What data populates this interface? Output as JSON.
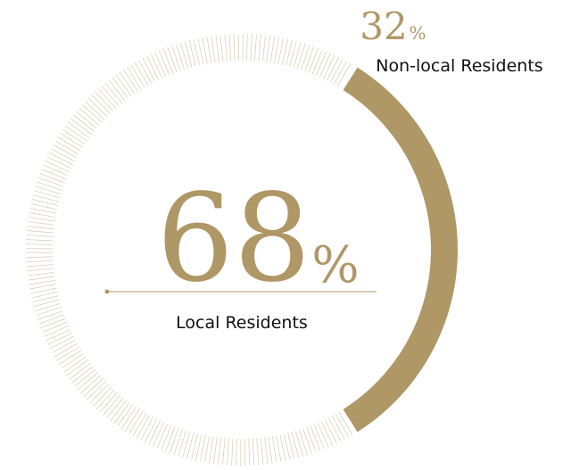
{
  "chart_data": {
    "type": "pie",
    "style": "donut",
    "series": [
      {
        "name": "Local Residents",
        "value": 68,
        "display": "68",
        "unit": "%",
        "fill": "hatched"
      },
      {
        "name": "Non-local Residents",
        "value": 32,
        "display": "32",
        "unit": "%",
        "fill": "solid"
      }
    ],
    "colors": {
      "accent": "#af9766",
      "hatch": "#d8cbb0",
      "text": "#111111"
    }
  }
}
